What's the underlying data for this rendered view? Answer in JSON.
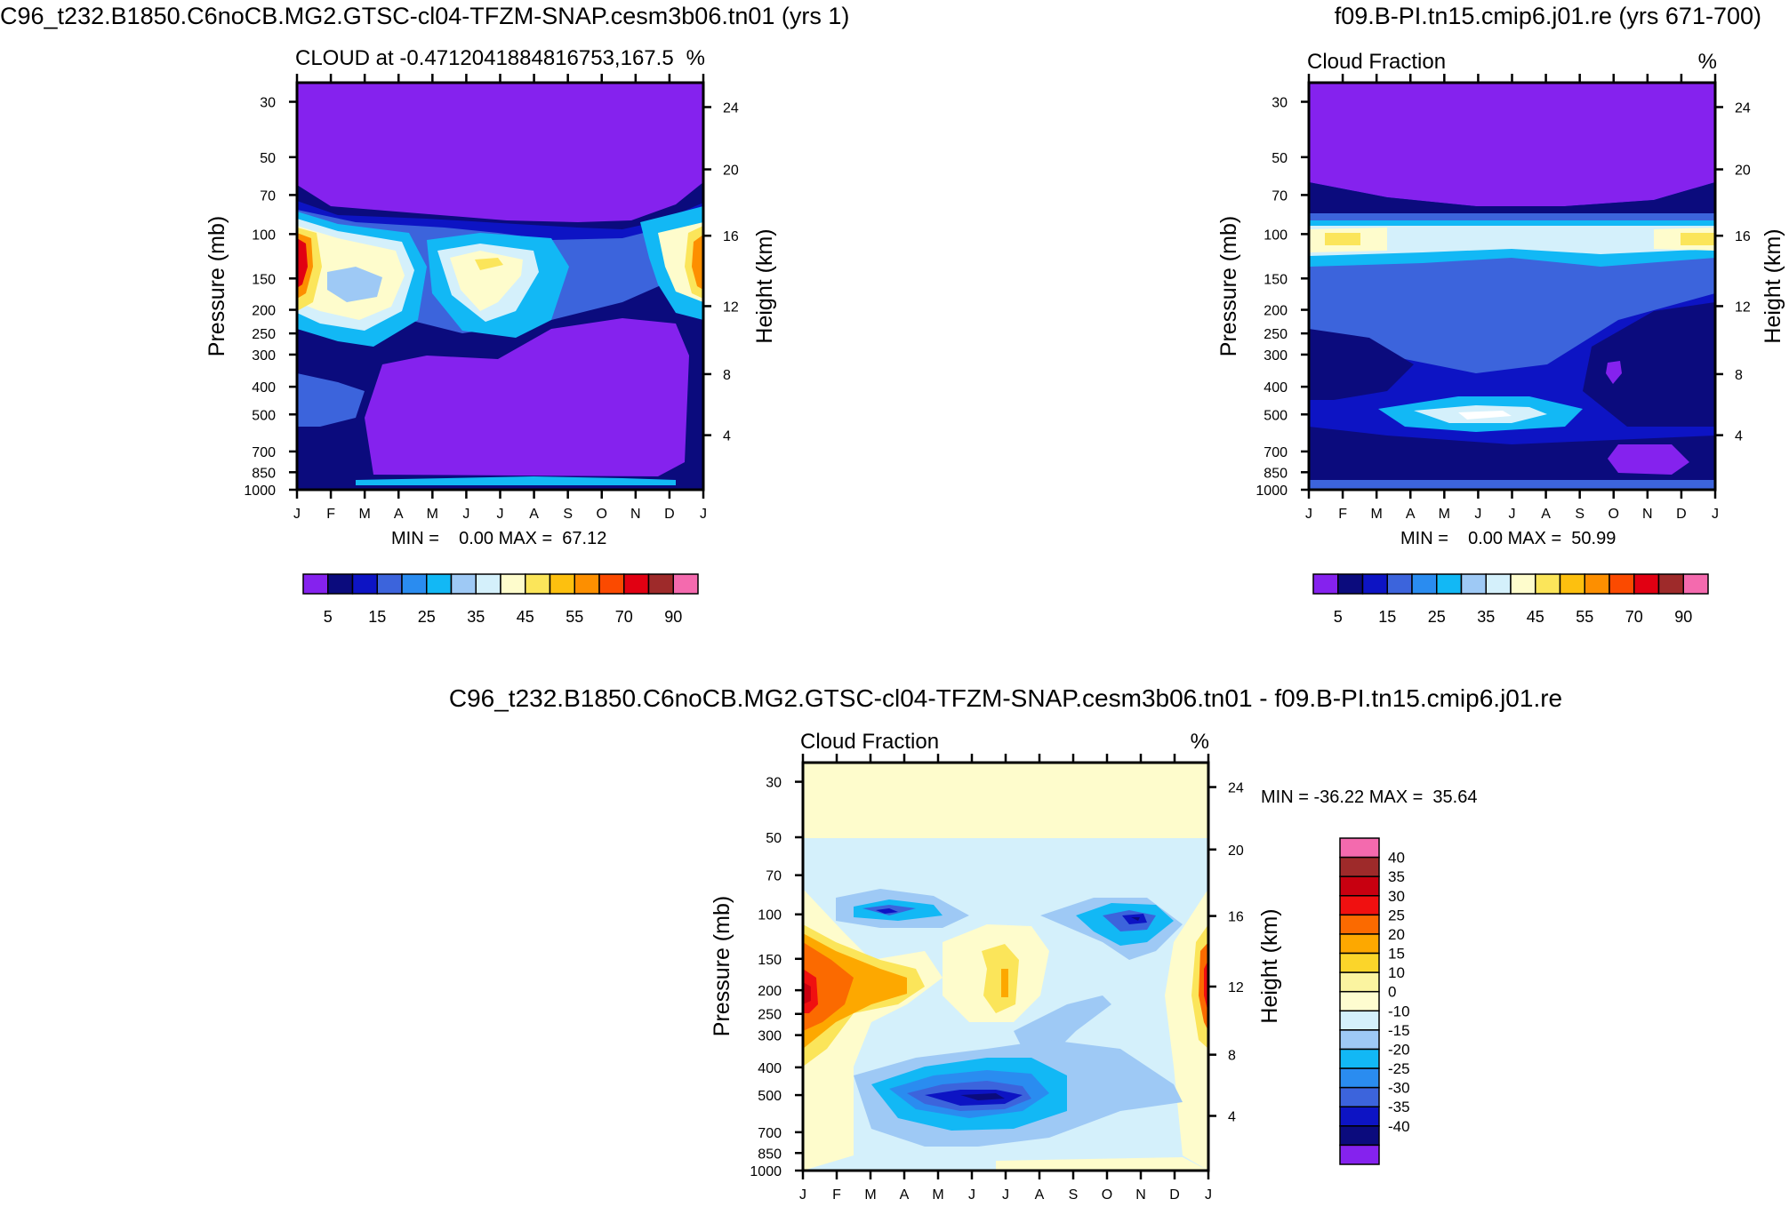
{
  "chart_data": [
    {
      "type": "heatmap",
      "title": "C96_t232.B1850.C6noCB.MG2.GTSC-cl04-TFZM-SNAP.cesm3b06.tn01 (yrs 1)",
      "subtitle": "CLOUD at -0.4712041884816753,167.5",
      "units": "%",
      "xlabel": "",
      "ylabel": "Pressure (mb)",
      "ylabel_right": "Height (km)",
      "x_ticks": [
        "J",
        "F",
        "M",
        "A",
        "M",
        "J",
        "J",
        "A",
        "S",
        "O",
        "N",
        "D",
        "J"
      ],
      "y_ticks": [
        "30",
        "50",
        "70",
        "100",
        "150",
        "200",
        "250",
        "300",
        "400",
        "500",
        "700",
        "850",
        "1000"
      ],
      "y_ticks_right": [
        "24",
        "20",
        "16",
        "12",
        "8",
        "4"
      ],
      "stats": "MIN =    0.00 MAX =  67.12",
      "colorbar_labels": [
        "5",
        "15",
        "25",
        "35",
        "45",
        "55",
        "70",
        "90"
      ],
      "colorbar_colors": [
        "#8522ee",
        "#0b0b7d",
        "#0d14c4",
        "#3c64dc",
        "#2a8cf0",
        "#12b8f5",
        "#9ec9f5",
        "#d4f0fb",
        "#fefccc",
        "#fbe55a",
        "#fdc00f",
        "#fd8f00",
        "#fb4a00",
        "#e10012",
        "#9e2a2a",
        "#f46aae"
      ],
      "min": 0.0,
      "max": 67.12
    },
    {
      "type": "heatmap",
      "title": "f09.B-PI.tn15.cmip6.j01.re (yrs 671-700)",
      "subtitle": "Cloud Fraction",
      "units": "%",
      "xlabel": "",
      "ylabel": "Pressure (mb)",
      "ylabel_right": "Height (km)",
      "x_ticks": [
        "J",
        "F",
        "M",
        "A",
        "M",
        "J",
        "J",
        "A",
        "S",
        "O",
        "N",
        "D",
        "J"
      ],
      "y_ticks": [
        "30",
        "50",
        "70",
        "100",
        "150",
        "200",
        "250",
        "300",
        "400",
        "500",
        "700",
        "850",
        "1000"
      ],
      "y_ticks_right": [
        "24",
        "20",
        "16",
        "12",
        "8",
        "4"
      ],
      "stats": "MIN =    0.00 MAX =  50.99",
      "colorbar_labels": [
        "5",
        "15",
        "25",
        "35",
        "45",
        "55",
        "70",
        "90"
      ],
      "colorbar_colors": [
        "#8522ee",
        "#0b0b7d",
        "#0d14c4",
        "#3c64dc",
        "#2a8cf0",
        "#12b8f5",
        "#9ec9f5",
        "#d4f0fb",
        "#fefccc",
        "#fbe55a",
        "#fdc00f",
        "#fd8f00",
        "#fb4a00",
        "#e10012",
        "#9e2a2a",
        "#f46aae"
      ],
      "min": 0.0,
      "max": 50.99
    },
    {
      "type": "heatmap",
      "title": "C96_t232.B1850.C6noCB.MG2.GTSC-cl04-TFZM-SNAP.cesm3b06.tn01 - f09.B-PI.tn15.cmip6.j01.re",
      "subtitle": "Cloud Fraction",
      "units": "%",
      "xlabel": "",
      "ylabel": "Pressure (mb)",
      "ylabel_right": "Height (km)",
      "x_ticks": [
        "J",
        "F",
        "M",
        "A",
        "M",
        "J",
        "J",
        "A",
        "S",
        "O",
        "N",
        "D",
        "J"
      ],
      "y_ticks": [
        "30",
        "50",
        "70",
        "100",
        "150",
        "200",
        "250",
        "300",
        "400",
        "500",
        "700",
        "850",
        "1000"
      ],
      "y_ticks_right": [
        "24",
        "20",
        "16",
        "12",
        "8",
        "4"
      ],
      "stats": "MIN = -36.22 MAX =  35.64",
      "colorbar_labels": [
        "40",
        "35",
        "30",
        "25",
        "20",
        "15",
        "10",
        "0",
        "-10",
        "-15",
        "-20",
        "-25",
        "-30",
        "-35",
        "-40"
      ],
      "colorbar_colors": [
        "#f46aae",
        "#9e2a2a",
        "#c80010",
        "#f01010",
        "#fb6a00",
        "#fda800",
        "#fbd52a",
        "#fbf4a0",
        "#fefcd0",
        "#d4f0fb",
        "#9ec9f5",
        "#12b8f5",
        "#2a8cf0",
        "#3c64dc",
        "#0d14c4",
        "#0b0b7d",
        "#8522ee"
      ],
      "min": -36.22,
      "max": 35.64
    }
  ]
}
